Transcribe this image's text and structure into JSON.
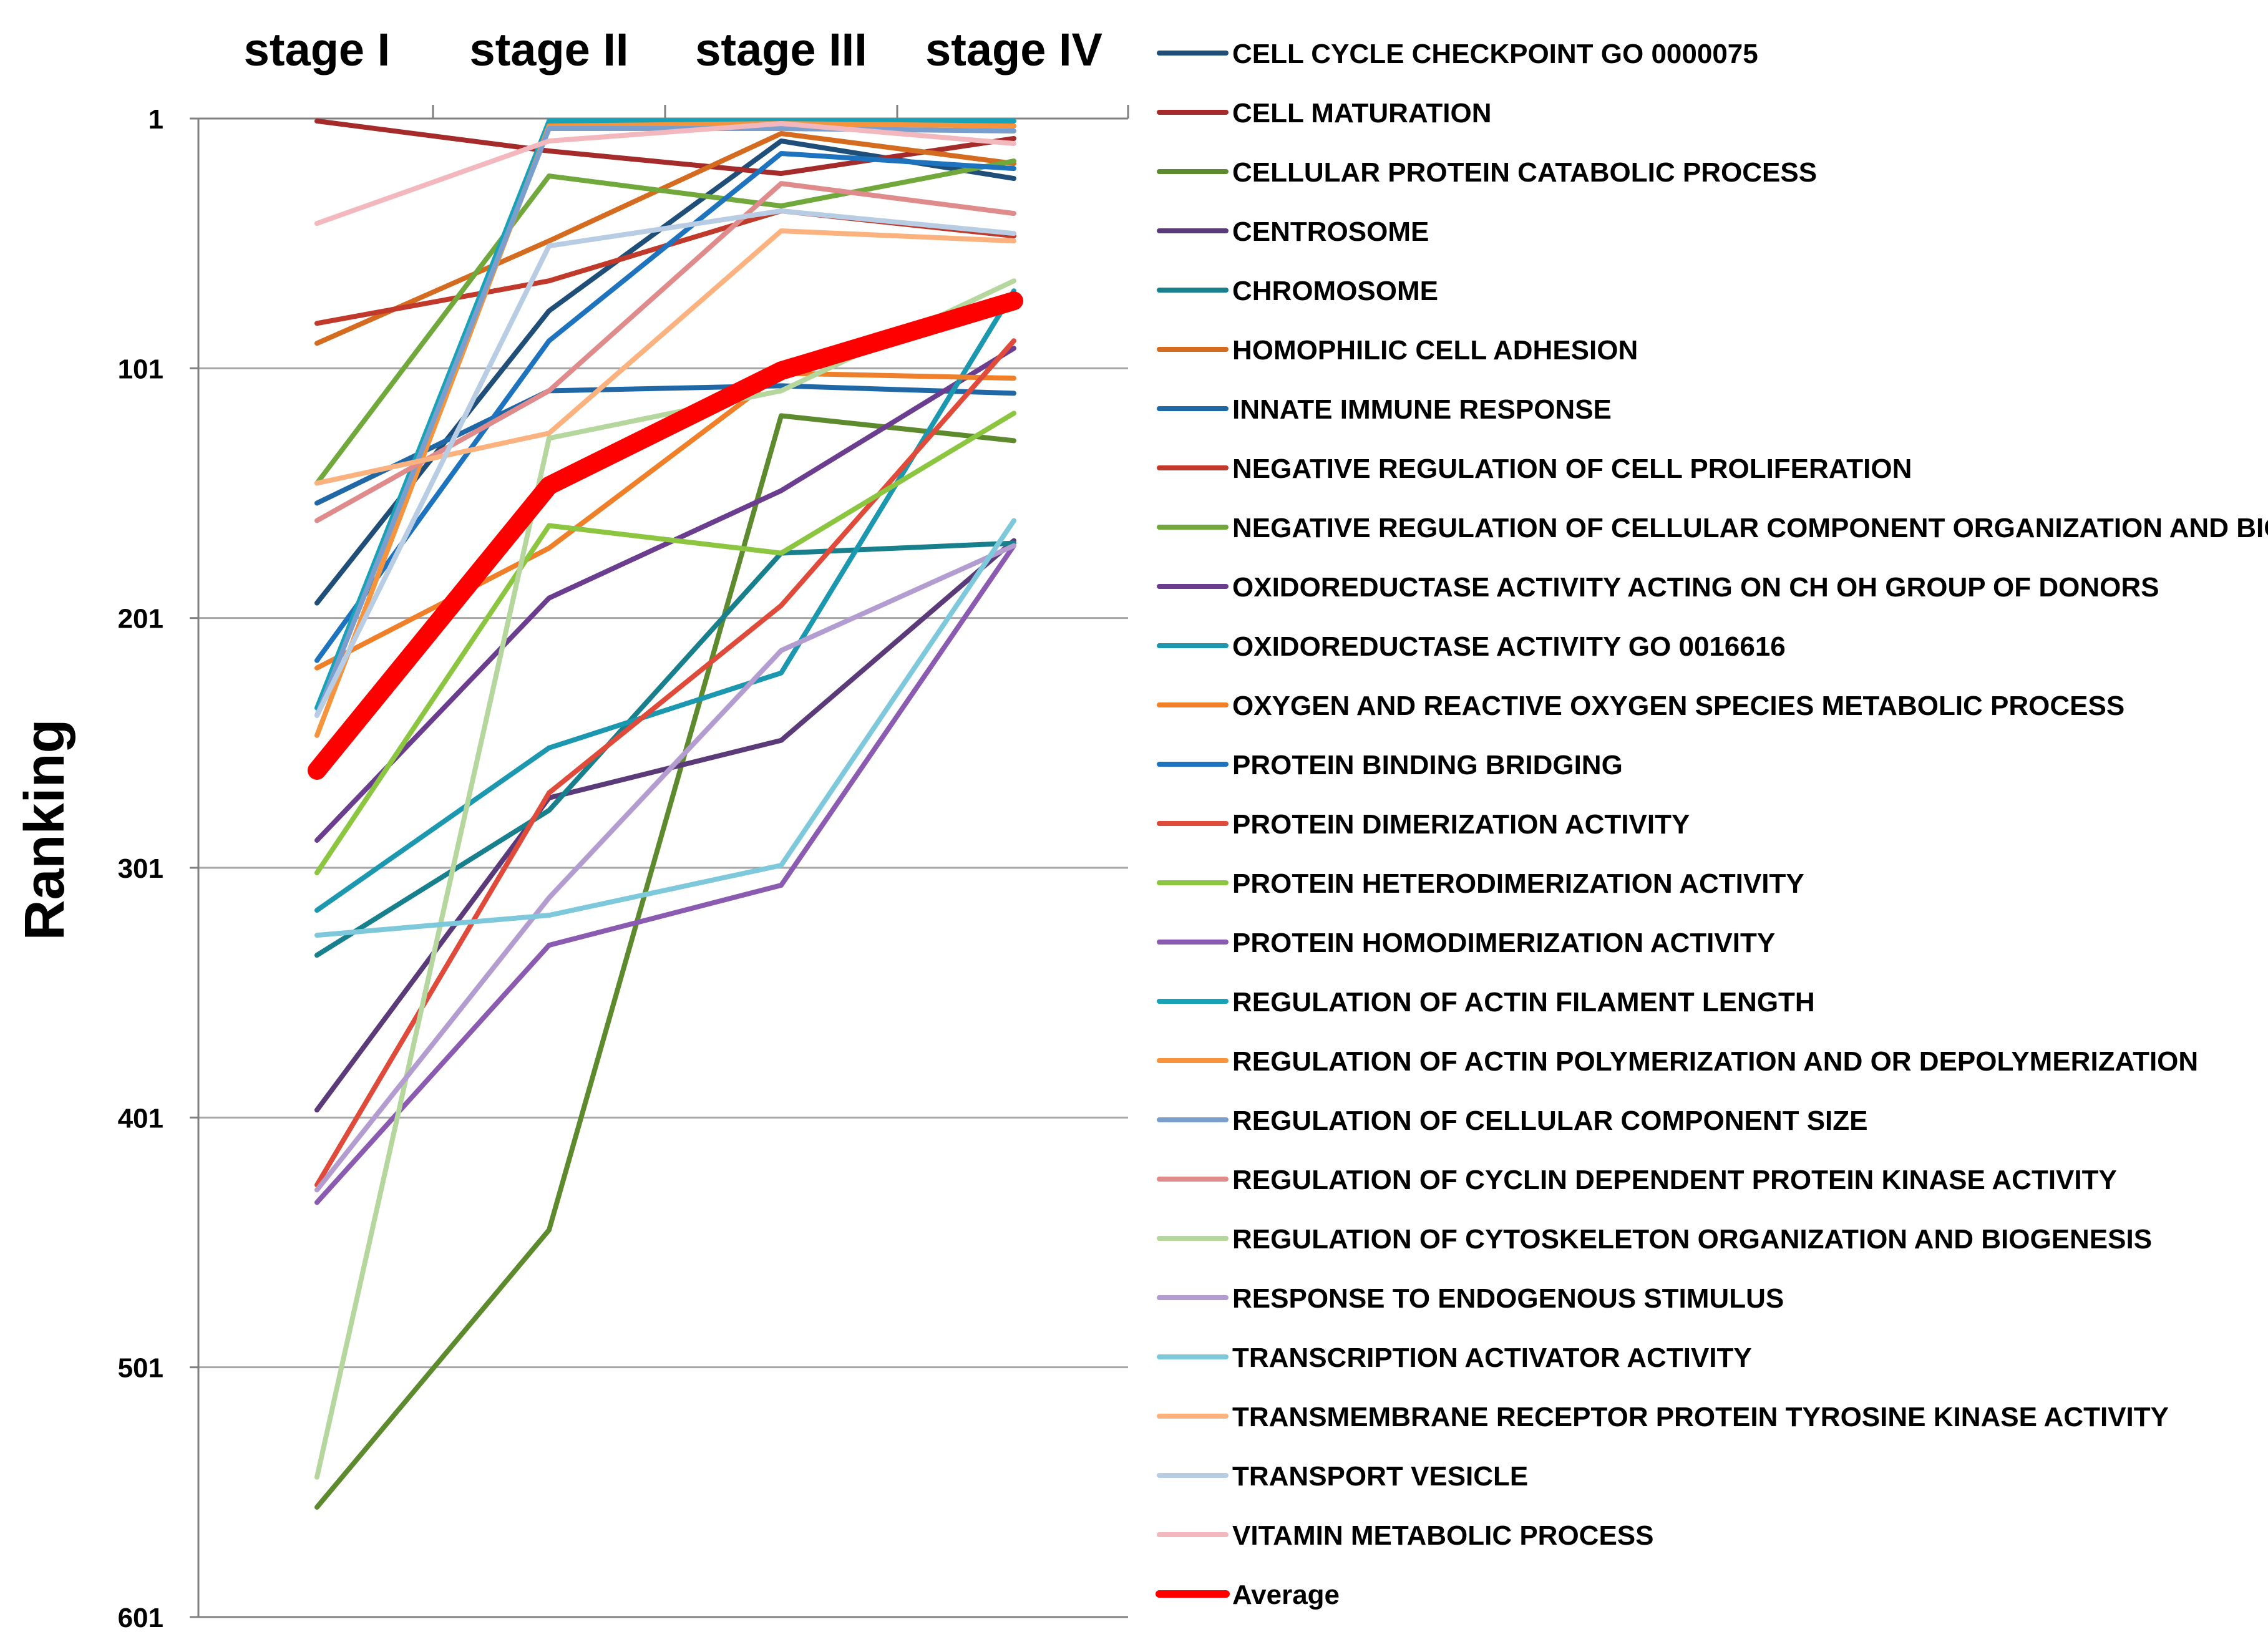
{
  "chart_data": {
    "type": "line",
    "title": "",
    "xlabel": "",
    "ylabel": "Ranking",
    "categories": [
      "stage I",
      "stage II",
      "stage III",
      "stage IV"
    ],
    "y_ticks": [
      "1",
      "101",
      "201",
      "301",
      "401",
      "501",
      "601"
    ],
    "ylim": [
      1,
      601
    ],
    "y_inverted": true,
    "grid": true,
    "legend_position": "right",
    "series": [
      {
        "name": "CELL CYCLE CHECKPOINT GO 0000075",
        "color": "#1f4e79",
        "values": [
          195,
          78,
          10,
          25
        ]
      },
      {
        "name": "CELL MATURATION",
        "color": "#a52a2a",
        "values": [
          2,
          14,
          23,
          9
        ]
      },
      {
        "name": "CELLULAR PROTEIN CATABOLIC PROCESS",
        "color": "#5e8a2e",
        "values": [
          557,
          446,
          120,
          130
        ]
      },
      {
        "name": "CENTROSOME",
        "color": "#5b3a7a",
        "values": [
          398,
          273,
          250,
          170
        ]
      },
      {
        "name": "CHROMOSOME",
        "color": "#17808c",
        "values": [
          336,
          278,
          175,
          171
        ]
      },
      {
        "name": "HOMOPHILIC CELL ADHESION",
        "color": "#d46b1e",
        "values": [
          91,
          50,
          7,
          19
        ]
      },
      {
        "name": "INNATE IMMUNE RESPONSE",
        "color": "#2067a6",
        "values": [
          155,
          110,
          108,
          111
        ]
      },
      {
        "name": "NEGATIVE REGULATION OF CELL PROLIFERATION",
        "color": "#c0392b",
        "values": [
          83,
          66,
          38,
          48
        ]
      },
      {
        "name": "NEGATIVE REGULATION OF CELLULAR COMPONENT ORGANIZATION AND BIOGENESIS",
        "color": "#70a83b",
        "values": [
          147,
          24,
          36,
          18
        ]
      },
      {
        "name": "OXIDOREDUCTASE ACTIVITY ACTING ON CH OH GROUP OF DONORS",
        "color": "#6a3d8f",
        "values": [
          290,
          193,
          150,
          93
        ]
      },
      {
        "name": "OXIDOREDUCTASE ACTIVITY GO 0016616",
        "color": "#1b98b0",
        "values": [
          318,
          253,
          223,
          70
        ]
      },
      {
        "name": "OXYGEN AND REACTIVE OXYGEN SPECIES METABOLIC PROCESS",
        "color": "#f07f2a",
        "values": [
          221,
          173,
          103,
          105
        ]
      },
      {
        "name": "PROTEIN BINDING BRIDGING",
        "color": "#1e73be",
        "values": [
          218,
          90,
          15,
          21
        ]
      },
      {
        "name": "PROTEIN DIMERIZATION ACTIVITY",
        "color": "#e04a3a",
        "values": [
          428,
          271,
          196,
          90
        ]
      },
      {
        "name": "PROTEIN HETERODIMERIZATION ACTIVITY",
        "color": "#8cc540",
        "values": [
          303,
          164,
          175,
          119
        ]
      },
      {
        "name": "PROTEIN HOMODIMERIZATION ACTIVITY",
        "color": "#8a5bb0",
        "values": [
          435,
          332,
          308,
          172
        ]
      },
      {
        "name": "REGULATION OF ACTIN FILAMENT LENGTH",
        "color": "#17a2b8",
        "values": [
          237,
          2,
          2,
          2
        ]
      },
      {
        "name": "REGULATION OF ACTIN POLYMERIZATION AND OR DEPOLYMERIZATION",
        "color": "#f5943c",
        "values": [
          248,
          4,
          3,
          4
        ]
      },
      {
        "name": "REGULATION OF CELLULAR COMPONENT SIZE",
        "color": "#7a9fcf",
        "values": [
          240,
          5,
          5,
          6
        ]
      },
      {
        "name": "REGULATION OF CYCLIN DEPENDENT PROTEIN KINASE ACTIVITY",
        "color": "#e08b8b",
        "values": [
          162,
          110,
          27,
          39
        ]
      },
      {
        "name": "REGULATION OF CYTOSKELETON ORGANIZATION AND BIOGENESIS",
        "color": "#b5d69c",
        "values": [
          545,
          129,
          110,
          66
        ]
      },
      {
        "name": "RESPONSE TO ENDOGENOUS STIMULUS",
        "color": "#b39dd0",
        "values": [
          430,
          313,
          214,
          172
        ]
      },
      {
        "name": "TRANSCRIPTION ACTIVATOR ACTIVITY",
        "color": "#7ec8dc",
        "values": [
          328,
          320,
          300,
          162
        ]
      },
      {
        "name": "TRANSMEMBRANE RECEPTOR PROTEIN TYROSINE KINASE ACTIVITY",
        "color": "#fbb27f",
        "values": [
          147,
          127,
          46,
          50
        ]
      },
      {
        "name": "TRANSPORT VESICLE",
        "color": "#b8cce4",
        "values": [
          240,
          52,
          38,
          47
        ]
      },
      {
        "name": "VITAMIN METABOLIC PROCESS",
        "color": "#f2b8be",
        "values": [
          43,
          10,
          3,
          11
        ]
      },
      {
        "name": "Average",
        "color": "#ff0000",
        "values": [
          262,
          148,
          102,
          74
        ],
        "highlight": true
      }
    ]
  }
}
